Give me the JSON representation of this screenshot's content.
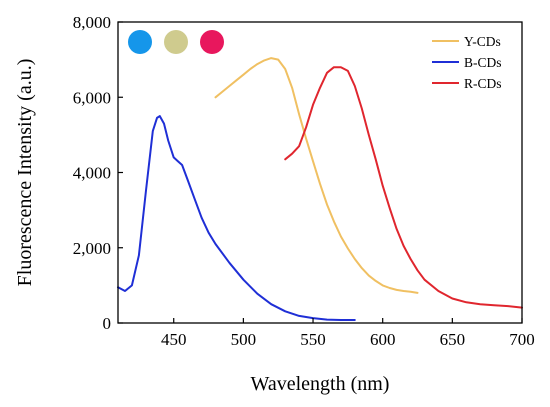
{
  "chart_data": {
    "type": "line",
    "title": "",
    "xlabel": "Wavelength (nm)",
    "ylabel": "Fluorescence Intensity (a.u.)",
    "xlim": [
      410,
      700
    ],
    "ylim": [
      0,
      8000
    ],
    "x_ticks": [
      450,
      500,
      550,
      600,
      650,
      700
    ],
    "y_ticks": [
      0,
      2000,
      4000,
      6000,
      8000
    ],
    "x_tick_labels": [
      "450",
      "500",
      "550",
      "600",
      "650",
      "700"
    ],
    "y_tick_labels": [
      "0",
      "2,000",
      "4,000",
      "6,000",
      "8,000"
    ],
    "grid": false,
    "legend_position": "top-right",
    "series": [
      {
        "name": "Y-CDs",
        "color": "#f0c062",
        "x": [
          480,
          485,
          490,
          495,
          500,
          505,
          510,
          515,
          520,
          525,
          530,
          535,
          540,
          545,
          550,
          555,
          560,
          565,
          570,
          575,
          580,
          585,
          590,
          595,
          600,
          605,
          610,
          615,
          620,
          625
        ],
        "y": [
          6000,
          6150,
          6300,
          6450,
          6600,
          6750,
          6880,
          6980,
          7040,
          7000,
          6750,
          6250,
          5550,
          4900,
          4300,
          3700,
          3150,
          2700,
          2300,
          1980,
          1700,
          1460,
          1260,
          1120,
          1000,
          930,
          880,
          850,
          830,
          800
        ]
      },
      {
        "name": "B-CDs",
        "color": "#1f2fd6",
        "x": [
          410,
          415,
          420,
          425,
          430,
          435,
          438,
          440,
          443,
          446,
          450,
          453,
          456,
          460,
          465,
          470,
          475,
          480,
          490,
          500,
          510,
          520,
          530,
          540,
          550,
          560,
          570,
          580
        ],
        "y": [
          950,
          850,
          1000,
          1800,
          3500,
          5100,
          5450,
          5500,
          5300,
          4850,
          4400,
          4300,
          4200,
          3800,
          3300,
          2800,
          2400,
          2100,
          1600,
          1150,
          780,
          500,
          310,
          190,
          130,
          90,
          80,
          80
        ]
      },
      {
        "name": "R-CDs",
        "color": "#e0262e",
        "x": [
          530,
          535,
          540,
          545,
          550,
          555,
          560,
          565,
          570,
          575,
          580,
          585,
          590,
          595,
          600,
          605,
          610,
          615,
          620,
          625,
          630,
          640,
          650,
          660,
          670,
          680,
          690,
          700
        ],
        "y": [
          4350,
          4500,
          4700,
          5200,
          5800,
          6250,
          6650,
          6800,
          6800,
          6700,
          6300,
          5700,
          5000,
          4350,
          3650,
          3050,
          2500,
          2050,
          1700,
          1400,
          1150,
          850,
          650,
          550,
          500,
          470,
          450,
          410
        ]
      }
    ]
  },
  "legend": {
    "items": [
      {
        "name": "Y-CDs",
        "color": "#f0c062"
      },
      {
        "name": "B-CDs",
        "color": "#1f2fd6"
      },
      {
        "name": "R-CDs",
        "color": "#e0262e"
      }
    ]
  },
  "sample_dots": [
    {
      "name": "blue-dot",
      "color": "#1596ea"
    },
    {
      "name": "yellow-dot",
      "color": "#cfcb8e"
    },
    {
      "name": "red-dot",
      "color": "#e8175d"
    }
  ]
}
